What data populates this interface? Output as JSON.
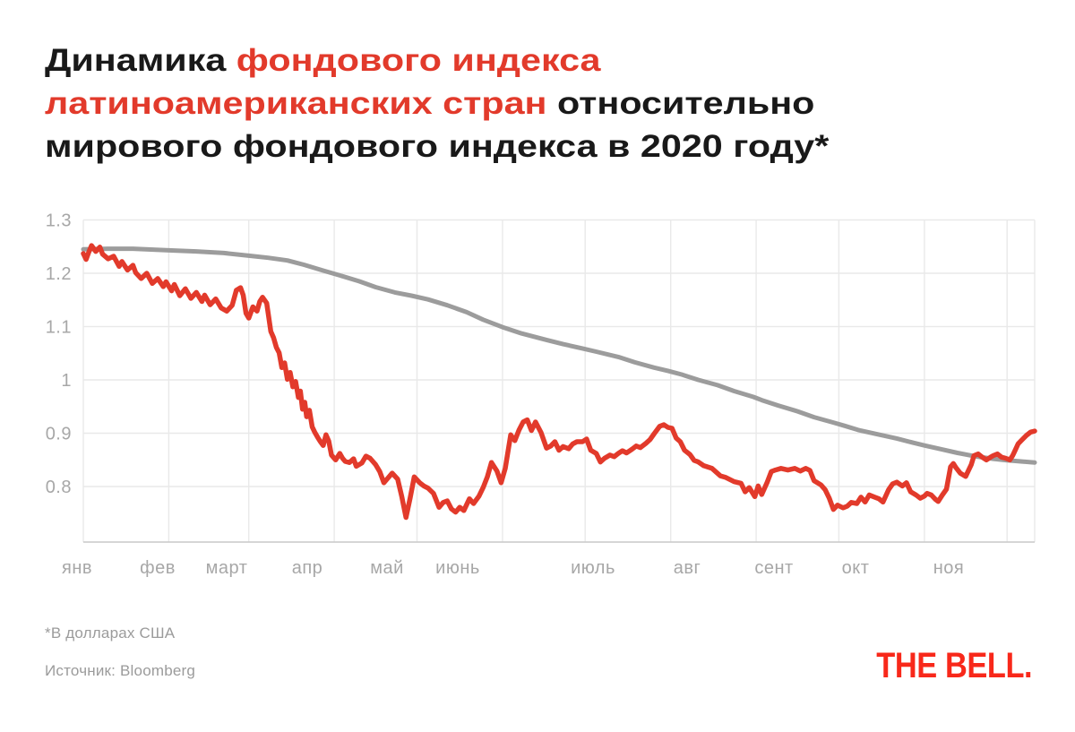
{
  "page": {
    "background": "#ffffff"
  },
  "title": {
    "line1_black": "Динамика ",
    "line1_red": "фондового индекса",
    "line2_red": "латиноамериканских стран",
    "line2_black": " относительно",
    "line3_black": "мирового фондового индекса в 2020 году*",
    "red_color": "#e23a2b",
    "black_color": "#191919"
  },
  "footer": {
    "footnote": "*В долларах США",
    "source": "Источник: Bloomberg",
    "logo_text": "THE BELL.",
    "logo_color": "#f8281a",
    "text_color": "#9b9b9b"
  },
  "colors": {
    "grid": "#e9e9e9",
    "axis_line": "#c9c9c9",
    "axis_text": "#a7a7a7",
    "red_line": "#e23a2b",
    "gray_line": "#9c9c9c"
  },
  "chart_data": {
    "type": "line",
    "title": "Динамика фондового индекса латиноамериканских стран относительно мирового фондового индекса в 2020 году*",
    "xlabel": "",
    "ylabel": "",
    "grid": true,
    "x_unit": "day of 2020 (0 = Jan 1, data ends mid-December)",
    "xlim": [
      0,
      345
    ],
    "ylim": [
      0.696,
      1.395
    ],
    "x_labels": [
      "янв",
      "фев",
      "март",
      "апр",
      "май",
      "июнь",
      "июль",
      "авг",
      "сент",
      "окт",
      "ноя"
    ],
    "month_start_days": [
      0,
      31,
      60,
      91,
      121,
      152,
      182,
      213,
      244,
      274,
      305,
      335
    ],
    "y_ticks": [
      1.3,
      1.2,
      1.1,
      1,
      0.9,
      0.8
    ],
    "y_tick_labels": [
      "1.3",
      "1.2",
      "1.1",
      "1",
      "0.9",
      "0.8"
    ],
    "legend": "none",
    "series": [
      {
        "id": "world-index-gray",
        "color": "#9c9c9c",
        "points": [
          [
            0,
            1.245
          ],
          [
            9,
            1.246
          ],
          [
            18,
            1.246
          ],
          [
            31,
            1.243
          ],
          [
            41,
            1.241
          ],
          [
            51,
            1.238
          ],
          [
            60,
            1.233
          ],
          [
            67,
            1.229
          ],
          [
            74,
            1.224
          ],
          [
            80,
            1.216
          ],
          [
            87,
            1.205
          ],
          [
            93,
            1.196
          ],
          [
            100,
            1.185
          ],
          [
            106,
            1.174
          ],
          [
            113,
            1.164
          ],
          [
            119,
            1.158
          ],
          [
            125,
            1.151
          ],
          [
            132,
            1.14
          ],
          [
            139,
            1.127
          ],
          [
            145,
            1.113
          ],
          [
            152,
            1.099
          ],
          [
            159,
            1.087
          ],
          [
            168,
            1.075
          ],
          [
            174,
            1.067
          ],
          [
            181,
            1.059
          ],
          [
            186,
            1.053
          ],
          [
            194,
            1.043
          ],
          [
            200,
            1.033
          ],
          [
            207,
            1.023
          ],
          [
            212,
            1.017
          ],
          [
            217,
            1.01
          ],
          [
            223,
            1.0
          ],
          [
            230,
            0.99
          ],
          [
            236,
            0.979
          ],
          [
            243,
            0.968
          ],
          [
            246,
            0.962
          ],
          [
            252,
            0.952
          ],
          [
            259,
            0.941
          ],
          [
            265,
            0.93
          ],
          [
            272,
            0.92
          ],
          [
            276,
            0.914
          ],
          [
            281,
            0.906
          ],
          [
            288,
            0.898
          ],
          [
            295,
            0.89
          ],
          [
            301,
            0.882
          ],
          [
            305,
            0.877
          ],
          [
            311,
            0.87
          ],
          [
            317,
            0.863
          ],
          [
            323,
            0.857
          ],
          [
            330,
            0.852
          ],
          [
            335,
            0.849
          ],
          [
            340,
            0.847
          ],
          [
            345,
            0.845
          ]
        ]
      },
      {
        "id": "latam-index-red",
        "color": "#e23a2b",
        "points": [
          [
            0,
            1.237
          ],
          [
            1,
            1.226
          ],
          [
            2,
            1.24
          ],
          [
            3,
            1.252
          ],
          [
            4.5,
            1.241
          ],
          [
            6,
            1.249
          ],
          [
            7,
            1.236
          ],
          [
            9,
            1.227
          ],
          [
            11,
            1.232
          ],
          [
            13,
            1.213
          ],
          [
            14,
            1.222
          ],
          [
            16,
            1.206
          ],
          [
            18,
            1.215
          ],
          [
            19,
            1.201
          ],
          [
            21,
            1.19
          ],
          [
            23,
            1.2
          ],
          [
            25,
            1.181
          ],
          [
            27,
            1.19
          ],
          [
            29,
            1.175
          ],
          [
            30,
            1.184
          ],
          [
            32,
            1.167
          ],
          [
            33,
            1.179
          ],
          [
            35,
            1.158
          ],
          [
            37,
            1.171
          ],
          [
            39,
            1.153
          ],
          [
            41,
            1.164
          ],
          [
            43,
            1.147
          ],
          [
            44,
            1.159
          ],
          [
            46,
            1.141
          ],
          [
            48,
            1.152
          ],
          [
            50,
            1.135
          ],
          [
            52,
            1.129
          ],
          [
            54,
            1.14
          ],
          [
            55.5,
            1.168
          ],
          [
            57,
            1.173
          ],
          [
            58,
            1.159
          ],
          [
            59,
            1.125
          ],
          [
            60,
            1.116
          ],
          [
            61.5,
            1.137
          ],
          [
            63,
            1.129
          ],
          [
            64,
            1.147
          ],
          [
            65,
            1.155
          ],
          [
            66.5,
            1.144
          ],
          [
            68,
            1.091
          ],
          [
            69,
            1.079
          ],
          [
            70,
            1.061
          ],
          [
            71,
            1.051
          ],
          [
            72,
            1.023
          ],
          [
            73,
            1.032
          ],
          [
            74,
            1.001
          ],
          [
            75,
            1.014
          ],
          [
            76,
            0.987
          ],
          [
            77,
            0.997
          ],
          [
            78,
            0.967
          ],
          [
            78.7,
            0.979
          ],
          [
            79.5,
            0.945
          ],
          [
            80.3,
            0.958
          ],
          [
            81,
            0.931
          ],
          [
            82,
            0.943
          ],
          [
            83,
            0.912
          ],
          [
            84,
            0.901
          ],
          [
            85,
            0.892
          ],
          [
            86,
            0.884
          ],
          [
            87,
            0.877
          ],
          [
            88,
            0.897
          ],
          [
            89,
            0.885
          ],
          [
            90,
            0.859
          ],
          [
            91.5,
            0.85
          ],
          [
            93,
            0.862
          ],
          [
            94,
            0.853
          ],
          [
            95,
            0.847
          ],
          [
            96.5,
            0.845
          ],
          [
            98,
            0.852
          ],
          [
            99,
            0.838
          ],
          [
            101,
            0.844
          ],
          [
            102.5,
            0.857
          ],
          [
            104,
            0.853
          ],
          [
            106,
            0.841
          ],
          [
            107.5,
            0.828
          ],
          [
            109,
            0.807
          ],
          [
            110.5,
            0.816
          ],
          [
            112,
            0.825
          ],
          [
            114,
            0.814
          ],
          [
            115.5,
            0.781
          ],
          [
            117,
            0.742
          ],
          [
            118.5,
            0.778
          ],
          [
            120,
            0.818
          ],
          [
            122,
            0.807
          ],
          [
            123.5,
            0.801
          ],
          [
            125,
            0.797
          ],
          [
            127,
            0.787
          ],
          [
            129,
            0.761
          ],
          [
            130.5,
            0.77
          ],
          [
            132,
            0.773
          ],
          [
            133.5,
            0.758
          ],
          [
            135,
            0.752
          ],
          [
            136.5,
            0.761
          ],
          [
            138,
            0.755
          ],
          [
            140,
            0.777
          ],
          [
            141.5,
            0.768
          ],
          [
            143.5,
            0.782
          ],
          [
            145,
            0.798
          ],
          [
            146.5,
            0.818
          ],
          [
            148,
            0.845
          ],
          [
            150,
            0.829
          ],
          [
            151.5,
            0.807
          ],
          [
            153,
            0.834
          ],
          [
            155,
            0.897
          ],
          [
            156.5,
            0.886
          ],
          [
            158,
            0.906
          ],
          [
            159.5,
            0.921
          ],
          [
            161,
            0.925
          ],
          [
            162.5,
            0.905
          ],
          [
            164,
            0.921
          ],
          [
            166,
            0.901
          ],
          [
            168,
            0.872
          ],
          [
            169.5,
            0.876
          ],
          [
            171,
            0.884
          ],
          [
            172.5,
            0.868
          ],
          [
            174,
            0.875
          ],
          [
            176,
            0.871
          ],
          [
            177.5,
            0.88
          ],
          [
            179,
            0.884
          ],
          [
            181,
            0.884
          ],
          [
            182.5,
            0.889
          ],
          [
            184,
            0.868
          ],
          [
            186,
            0.862
          ],
          [
            187.5,
            0.846
          ],
          [
            189,
            0.853
          ],
          [
            191,
            0.859
          ],
          [
            192.5,
            0.856
          ],
          [
            194,
            0.862
          ],
          [
            195.5,
            0.867
          ],
          [
            197,
            0.863
          ],
          [
            199,
            0.87
          ],
          [
            200.5,
            0.876
          ],
          [
            202,
            0.873
          ],
          [
            204,
            0.881
          ],
          [
            205.5,
            0.888
          ],
          [
            207,
            0.899
          ],
          [
            209,
            0.913
          ],
          [
            210.5,
            0.916
          ],
          [
            212,
            0.911
          ],
          [
            213.5,
            0.909
          ],
          [
            215,
            0.891
          ],
          [
            216.5,
            0.884
          ],
          [
            218,
            0.868
          ],
          [
            220,
            0.86
          ],
          [
            221.5,
            0.849
          ],
          [
            223,
            0.846
          ],
          [
            225,
            0.839
          ],
          [
            228,
            0.834
          ],
          [
            231,
            0.82
          ],
          [
            233,
            0.817
          ],
          [
            236,
            0.809
          ],
          [
            238.5,
            0.806
          ],
          [
            240,
            0.79
          ],
          [
            241.5,
            0.798
          ],
          [
            243.5,
            0.781
          ],
          [
            244.7,
            0.801
          ],
          [
            246,
            0.785
          ],
          [
            248,
            0.808
          ],
          [
            249.5,
            0.828
          ],
          [
            251,
            0.831
          ],
          [
            253,
            0.834
          ],
          [
            255.5,
            0.831
          ],
          [
            258,
            0.834
          ],
          [
            260,
            0.829
          ],
          [
            262,
            0.834
          ],
          [
            263.5,
            0.83
          ],
          [
            265,
            0.811
          ],
          [
            267.5,
            0.803
          ],
          [
            269,
            0.794
          ],
          [
            270.5,
            0.778
          ],
          [
            272,
            0.757
          ],
          [
            273.5,
            0.765
          ],
          [
            275.5,
            0.76
          ],
          [
            277,
            0.763
          ],
          [
            278.5,
            0.77
          ],
          [
            280.5,
            0.768
          ],
          [
            282,
            0.78
          ],
          [
            283.5,
            0.771
          ],
          [
            285,
            0.784
          ],
          [
            287,
            0.78
          ],
          [
            288.5,
            0.777
          ],
          [
            290,
            0.771
          ],
          [
            292,
            0.794
          ],
          [
            293.5,
            0.805
          ],
          [
            295,
            0.808
          ],
          [
            297,
            0.801
          ],
          [
            298.5,
            0.807
          ],
          [
            300,
            0.79
          ],
          [
            302,
            0.784
          ],
          [
            303.5,
            0.778
          ],
          [
            305,
            0.782
          ],
          [
            306,
            0.787
          ],
          [
            307.5,
            0.784
          ],
          [
            309,
            0.776
          ],
          [
            310,
            0.772
          ],
          [
            311.5,
            0.784
          ],
          [
            313,
            0.795
          ],
          [
            314.5,
            0.837
          ],
          [
            315.5,
            0.843
          ],
          [
            316.5,
            0.835
          ],
          [
            318,
            0.825
          ],
          [
            320,
            0.819
          ],
          [
            321,
            0.83
          ],
          [
            322,
            0.841
          ],
          [
            323,
            0.858
          ],
          [
            324.5,
            0.861
          ],
          [
            326,
            0.855
          ],
          [
            327.5,
            0.85
          ],
          [
            329,
            0.855
          ],
          [
            330,
            0.858
          ],
          [
            331.5,
            0.861
          ],
          [
            333,
            0.855
          ],
          [
            334.5,
            0.853
          ],
          [
            336,
            0.85
          ],
          [
            337,
            0.858
          ],
          [
            338,
            0.869
          ],
          [
            339,
            0.88
          ],
          [
            340.5,
            0.888
          ],
          [
            342,
            0.896
          ],
          [
            343.5,
            0.902
          ],
          [
            345,
            0.904
          ]
        ]
      }
    ]
  }
}
